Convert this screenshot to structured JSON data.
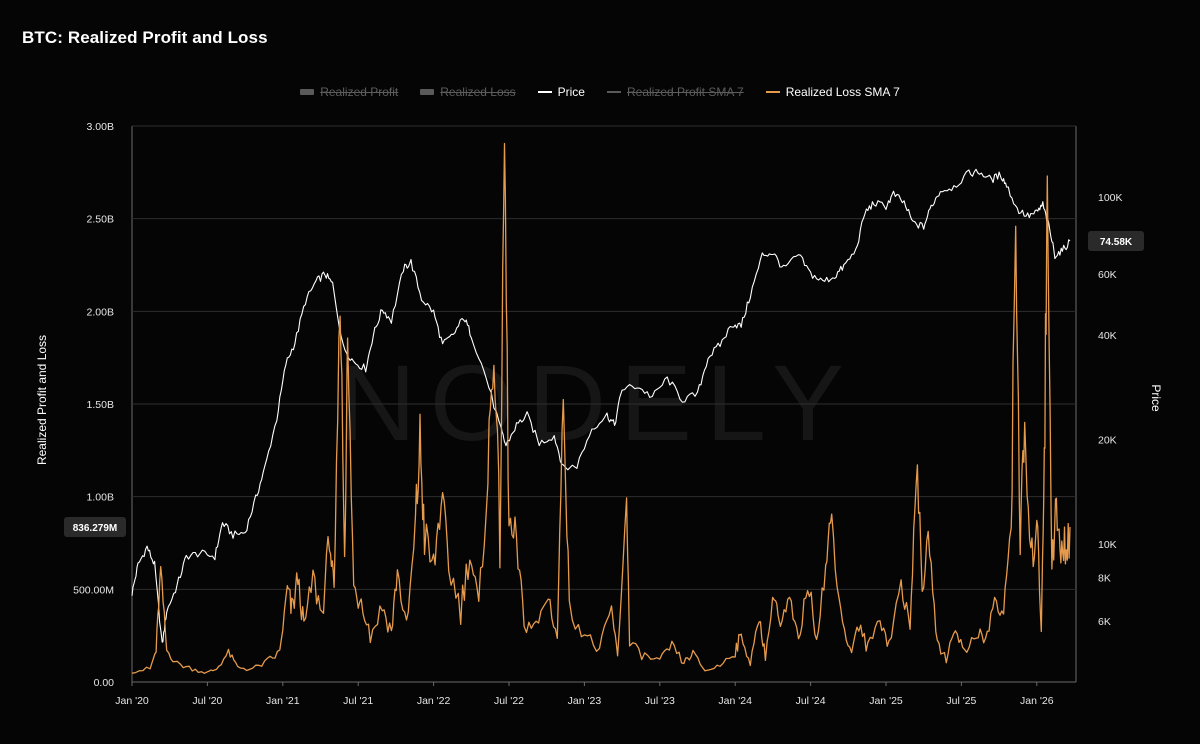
{
  "title": "BTC: Realized Profit and Loss",
  "watermark": "NODELY",
  "legend": [
    {
      "label": "Realized Profit",
      "color": "#5a5a5a",
      "symbol": "box",
      "enabled": false
    },
    {
      "label": "Realized Loss",
      "color": "#5a5a5a",
      "symbol": "box",
      "enabled": false
    },
    {
      "label": "Price",
      "color": "#ffffff",
      "symbol": "line",
      "enabled": true
    },
    {
      "label": "Realized Profit SMA 7",
      "color": "#5a5a5a",
      "symbol": "line",
      "enabled": false
    },
    {
      "label": "Realized Loss SMA 7",
      "color": "#e69a4c",
      "symbol": "line",
      "enabled": true
    }
  ],
  "chart_data": {
    "type": "line",
    "title": "BTC: Realized Profit and Loss",
    "x_range": [
      "2020-01",
      "2026-06"
    ],
    "x_ticks": [
      {
        "t": 2020.0,
        "label": "Jan '20"
      },
      {
        "t": 2020.5,
        "label": "Jul '20"
      },
      {
        "t": 2021.0,
        "label": "Jan '21"
      },
      {
        "t": 2021.5,
        "label": "Jul '21"
      },
      {
        "t": 2022.0,
        "label": "Jan '22"
      },
      {
        "t": 2022.5,
        "label": "Jul '22"
      },
      {
        "t": 2023.0,
        "label": "Jan '23"
      },
      {
        "t": 2023.5,
        "label": "Jul '23"
      },
      {
        "t": 2024.0,
        "label": "Jan '24"
      },
      {
        "t": 2024.5,
        "label": "Jul '24"
      },
      {
        "t": 2025.0,
        "label": "Jan '25"
      },
      {
        "t": 2025.5,
        "label": "Jul '25"
      },
      {
        "t": 2026.0,
        "label": "Jan '26"
      }
    ],
    "left_axis": {
      "label": "Realized Profit and Loss",
      "scale": "linear",
      "ylim": [
        0,
        3000000000
      ],
      "ticks": [
        {
          "v": 0,
          "label": "0.00"
        },
        {
          "v": 500000000,
          "label": "500.00M"
        },
        {
          "v": 1000000000,
          "label": "1.00B"
        },
        {
          "v": 1500000000,
          "label": "1.50B"
        },
        {
          "v": 2000000000,
          "label": "2.00B"
        },
        {
          "v": 2500000000,
          "label": "2.50B"
        },
        {
          "v": 3000000000,
          "label": "3.00B"
        }
      ],
      "current_value": {
        "v": 836279000,
        "label": "836.279M"
      }
    },
    "right_axis": {
      "label": "Price",
      "scale": "log",
      "ylim": [
        4000,
        160000
      ],
      "ticks": [
        {
          "v": 6000,
          "label": "6K"
        },
        {
          "v": 8000,
          "label": "8K"
        },
        {
          "v": 10000,
          "label": "10K"
        },
        {
          "v": 20000,
          "label": "20K"
        },
        {
          "v": 40000,
          "label": "40K"
        },
        {
          "v": 60000,
          "label": "60K"
        },
        {
          "v": 100000,
          "label": "100K"
        }
      ],
      "current_value": {
        "v": 74580,
        "label": "74.58K"
      }
    },
    "series": [
      {
        "name": "Price",
        "axis": "right",
        "color": "#ffffff",
        "points": [
          [
            2020.0,
            7200
          ],
          [
            2020.04,
            8700
          ],
          [
            2020.1,
            9800
          ],
          [
            2020.15,
            8700
          ],
          [
            2020.2,
            5100
          ],
          [
            2020.23,
            6400
          ],
          [
            2020.3,
            7600
          ],
          [
            2020.36,
            9200
          ],
          [
            2020.45,
            9400
          ],
          [
            2020.55,
            9200
          ],
          [
            2020.6,
            11500
          ],
          [
            2020.67,
            10600
          ],
          [
            2020.75,
            10800
          ],
          [
            2020.82,
            13500
          ],
          [
            2020.88,
            16500
          ],
          [
            2020.96,
            23000
          ],
          [
            2021.02,
            33000
          ],
          [
            2021.08,
            38000
          ],
          [
            2021.15,
            50000
          ],
          [
            2021.22,
            57000
          ],
          [
            2021.28,
            60000
          ],
          [
            2021.33,
            56000
          ],
          [
            2021.4,
            37000
          ],
          [
            2021.47,
            33500
          ],
          [
            2021.55,
            32000
          ],
          [
            2021.6,
            40000
          ],
          [
            2021.66,
            47500
          ],
          [
            2021.72,
            44000
          ],
          [
            2021.8,
            62000
          ],
          [
            2021.85,
            65000
          ],
          [
            2021.92,
            51000
          ],
          [
            2022.0,
            46500
          ],
          [
            2022.06,
            37500
          ],
          [
            2022.13,
            40000
          ],
          [
            2022.2,
            45000
          ],
          [
            2022.25,
            40000
          ],
          [
            2022.35,
            30000
          ],
          [
            2022.45,
            21000
          ],
          [
            2022.48,
            19200
          ],
          [
            2022.55,
            22000
          ],
          [
            2022.62,
            23500
          ],
          [
            2022.7,
            19500
          ],
          [
            2022.8,
            20500
          ],
          [
            2022.86,
            16500
          ],
          [
            2022.95,
            16800
          ],
          [
            2023.05,
            21500
          ],
          [
            2023.15,
            23500
          ],
          [
            2023.2,
            22000
          ],
          [
            2023.25,
            28000
          ],
          [
            2023.35,
            28500
          ],
          [
            2023.45,
            26500
          ],
          [
            2023.55,
            30000
          ],
          [
            2023.65,
            26000
          ],
          [
            2023.75,
            27000
          ],
          [
            2023.82,
            34500
          ],
          [
            2023.9,
            37500
          ],
          [
            2023.98,
            43000
          ],
          [
            2024.04,
            42500
          ],
          [
            2024.1,
            52000
          ],
          [
            2024.18,
            68000
          ],
          [
            2024.25,
            69000
          ],
          [
            2024.32,
            62000
          ],
          [
            2024.42,
            68000
          ],
          [
            2024.5,
            60000
          ],
          [
            2024.58,
            57000
          ],
          [
            2024.66,
            59000
          ],
          [
            2024.72,
            63000
          ],
          [
            2024.8,
            70000
          ],
          [
            2024.86,
            90000
          ],
          [
            2024.92,
            96000
          ],
          [
            2025.0,
            94000
          ],
          [
            2025.05,
            102000
          ],
          [
            2025.12,
            96000
          ],
          [
            2025.18,
            84000
          ],
          [
            2025.25,
            82000
          ],
          [
            2025.3,
            94000
          ],
          [
            2025.36,
            104000
          ],
          [
            2025.45,
            107000
          ],
          [
            2025.55,
            117000
          ],
          [
            2025.62,
            118000
          ],
          [
            2025.7,
            112000
          ],
          [
            2025.76,
            116000
          ],
          [
            2025.8,
            108000
          ],
          [
            2025.87,
            92000
          ],
          [
            2025.94,
            88000
          ],
          [
            2026.0,
            90000
          ],
          [
            2026.04,
            95000
          ],
          [
            2026.08,
            82000
          ],
          [
            2026.12,
            68000
          ],
          [
            2026.17,
            70000
          ],
          [
            2026.22,
            74580
          ]
        ]
      },
      {
        "name": "Realized Loss SMA 7",
        "axis": "left",
        "color": "#e69a4c",
        "points": [
          [
            2020.0,
            60000000
          ],
          [
            2020.12,
            70000000
          ],
          [
            2020.16,
            170000000
          ],
          [
            2020.19,
            610000000
          ],
          [
            2020.23,
            170000000
          ],
          [
            2020.3,
            100000000
          ],
          [
            2020.4,
            70000000
          ],
          [
            2020.5,
            50000000
          ],
          [
            2020.56,
            70000000
          ],
          [
            2020.64,
            160000000
          ],
          [
            2020.7,
            80000000
          ],
          [
            2020.8,
            70000000
          ],
          [
            2020.9,
            110000000
          ],
          [
            2020.98,
            160000000
          ],
          [
            2021.03,
            500000000
          ],
          [
            2021.06,
            380000000
          ],
          [
            2021.1,
            560000000
          ],
          [
            2021.14,
            290000000
          ],
          [
            2021.2,
            560000000
          ],
          [
            2021.26,
            360000000
          ],
          [
            2021.31,
            800000000
          ],
          [
            2021.34,
            430000000
          ],
          [
            2021.38,
            2120000000
          ],
          [
            2021.41,
            700000000
          ],
          [
            2021.43,
            1820000000
          ],
          [
            2021.47,
            500000000
          ],
          [
            2021.52,
            460000000
          ],
          [
            2021.58,
            250000000
          ],
          [
            2021.66,
            410000000
          ],
          [
            2021.72,
            270000000
          ],
          [
            2021.76,
            600000000
          ],
          [
            2021.82,
            280000000
          ],
          [
            2021.88,
            820000000
          ],
          [
            2021.91,
            1310000000
          ],
          [
            2021.94,
            780000000
          ],
          [
            2022.0,
            600000000
          ],
          [
            2022.05,
            990000000
          ],
          [
            2022.1,
            620000000
          ],
          [
            2022.18,
            400000000
          ],
          [
            2022.24,
            700000000
          ],
          [
            2022.3,
            390000000
          ],
          [
            2022.36,
            1100000000
          ],
          [
            2022.4,
            1850000000
          ],
          [
            2022.44,
            750000000
          ],
          [
            2022.47,
            2940000000
          ],
          [
            2022.5,
            820000000
          ],
          [
            2022.55,
            720000000
          ],
          [
            2022.6,
            330000000
          ],
          [
            2022.68,
            290000000
          ],
          [
            2022.76,
            470000000
          ],
          [
            2022.82,
            240000000
          ],
          [
            2022.86,
            1580000000
          ],
          [
            2022.9,
            400000000
          ],
          [
            2023.0,
            260000000
          ],
          [
            2023.1,
            170000000
          ],
          [
            2023.18,
            400000000
          ],
          [
            2023.22,
            130000000
          ],
          [
            2023.28,
            990000000
          ],
          [
            2023.3,
            200000000
          ],
          [
            2023.4,
            140000000
          ],
          [
            2023.5,
            110000000
          ],
          [
            2023.58,
            200000000
          ],
          [
            2023.66,
            100000000
          ],
          [
            2023.72,
            160000000
          ],
          [
            2023.8,
            60000000
          ],
          [
            2023.9,
            90000000
          ],
          [
            2024.0,
            170000000
          ],
          [
            2024.04,
            250000000
          ],
          [
            2024.1,
            100000000
          ],
          [
            2024.16,
            350000000
          ],
          [
            2024.2,
            140000000
          ],
          [
            2024.26,
            500000000
          ],
          [
            2024.3,
            280000000
          ],
          [
            2024.36,
            440000000
          ],
          [
            2024.42,
            210000000
          ],
          [
            2024.48,
            540000000
          ],
          [
            2024.54,
            260000000
          ],
          [
            2024.6,
            610000000
          ],
          [
            2024.64,
            890000000
          ],
          [
            2024.7,
            380000000
          ],
          [
            2024.76,
            160000000
          ],
          [
            2024.82,
            300000000
          ],
          [
            2024.88,
            180000000
          ],
          [
            2024.96,
            350000000
          ],
          [
            2025.02,
            200000000
          ],
          [
            2025.1,
            540000000
          ],
          [
            2025.16,
            270000000
          ],
          [
            2025.2,
            1170000000
          ],
          [
            2025.24,
            560000000
          ],
          [
            2025.29,
            720000000
          ],
          [
            2025.34,
            200000000
          ],
          [
            2025.4,
            130000000
          ],
          [
            2025.46,
            300000000
          ],
          [
            2025.52,
            150000000
          ],
          [
            2025.6,
            280000000
          ],
          [
            2025.66,
            210000000
          ],
          [
            2025.72,
            450000000
          ],
          [
            2025.78,
            330000000
          ],
          [
            2025.83,
            900000000
          ],
          [
            2025.86,
            2490000000
          ],
          [
            2025.89,
            760000000
          ],
          [
            2025.92,
            1350000000
          ],
          [
            2025.96,
            600000000
          ],
          [
            2026.0,
            900000000
          ],
          [
            2026.03,
            300000000
          ],
          [
            2026.05,
            1200000000
          ],
          [
            2026.07,
            2620000000
          ],
          [
            2026.1,
            700000000
          ],
          [
            2026.13,
            920000000
          ],
          [
            2026.16,
            660000000
          ],
          [
            2026.19,
            740000000
          ],
          [
            2026.22,
            836279000
          ]
        ]
      }
    ]
  }
}
